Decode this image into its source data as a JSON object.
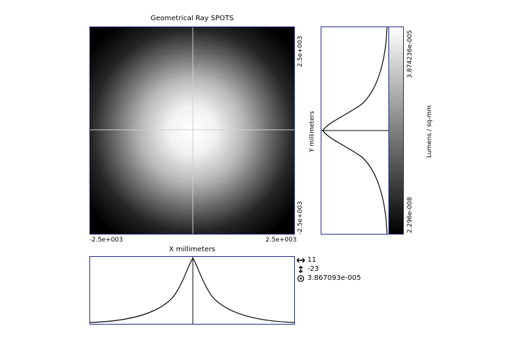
{
  "plot": {
    "title": "Geometrical Ray SPOTS",
    "x_axis": {
      "label": "X millimeters",
      "min_label": "-2.5e+003",
      "max_label": "2.5e+003"
    },
    "y_axis": {
      "label": "Y millimeters",
      "max_label": "2.5e+003",
      "min_label": "-2.5e+003"
    },
    "colorbar": {
      "label": "Lumens / sq-mm",
      "max_label": "3.874236e-005",
      "min_label": "2.296e-008"
    }
  },
  "cursor_readout": {
    "x": {
      "icon": "horizontal-arrows-icon",
      "value": "11"
    },
    "y": {
      "icon": "vertical-arrows-icon",
      "value": "-23"
    },
    "value": {
      "icon": "target-icon",
      "value": "3.867093e-005"
    }
  }
}
